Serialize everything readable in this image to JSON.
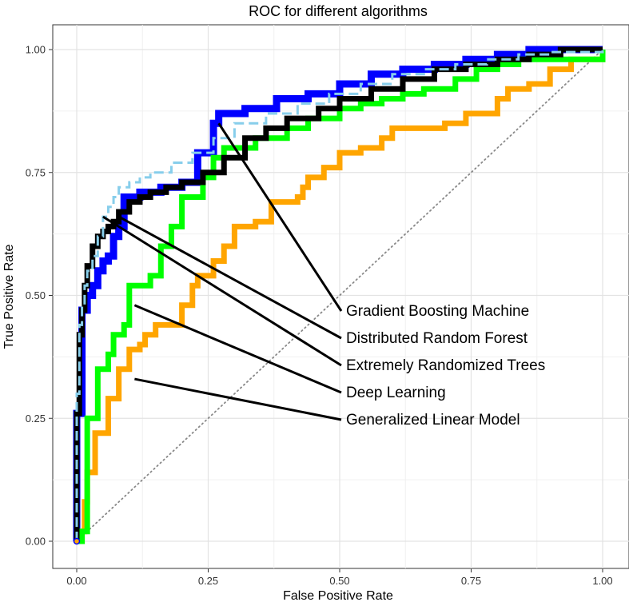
{
  "chart_data": {
    "type": "line",
    "title": "ROC for different algorithms",
    "xlabel": "False Positive Rate",
    "ylabel": "True Positive Rate",
    "xlim": [
      0,
      1
    ],
    "ylim": [
      0,
      1
    ],
    "xticks": [
      0,
      0.25,
      0.5,
      0.75,
      1
    ],
    "yticks": [
      0,
      0.25,
      0.5,
      0.75,
      1
    ],
    "xtick_labels": [
      "0.00",
      "0.25",
      "0.50",
      "0.75",
      "1.00"
    ],
    "ytick_labels": [
      "0.00",
      "0.25",
      "0.50",
      "0.75",
      "1.00"
    ],
    "grid": true,
    "legend": "annotations",
    "reference_line": {
      "x": [
        0,
        1
      ],
      "y": [
        0,
        1
      ],
      "style": "dotted",
      "color": "#888888"
    },
    "series": [
      {
        "name": "Generalized Linear Model",
        "color": "#FFA500",
        "annotation_point": [
          0.11,
          0.33
        ],
        "x": [
          0.0,
          0.01,
          0.015,
          0.02,
          0.02,
          0.035,
          0.035,
          0.06,
          0.06,
          0.08,
          0.08,
          0.1,
          0.1,
          0.12,
          0.13,
          0.15,
          0.15,
          0.2,
          0.2,
          0.22,
          0.23,
          0.26,
          0.28,
          0.3,
          0.3,
          0.34,
          0.37,
          0.37,
          0.42,
          0.43,
          0.44,
          0.47,
          0.5,
          0.5,
          0.54,
          0.58,
          0.6,
          0.64,
          0.7,
          0.74,
          0.8,
          0.82,
          0.86,
          0.9,
          0.94,
          1.0
        ],
        "y": [
          0.0,
          0.02,
          0.08,
          0.12,
          0.14,
          0.18,
          0.22,
          0.25,
          0.29,
          0.3,
          0.35,
          0.37,
          0.39,
          0.4,
          0.42,
          0.43,
          0.44,
          0.44,
          0.48,
          0.52,
          0.54,
          0.57,
          0.6,
          0.62,
          0.64,
          0.65,
          0.68,
          0.69,
          0.7,
          0.72,
          0.74,
          0.76,
          0.77,
          0.79,
          0.8,
          0.82,
          0.84,
          0.84,
          0.85,
          0.87,
          0.9,
          0.92,
          0.93,
          0.96,
          0.98,
          1.0
        ]
      },
      {
        "name": "Deep Learning",
        "color": "#00FF00",
        "annotation_point": [
          0.11,
          0.48
        ],
        "x": [
          0.0,
          0.01,
          0.02,
          0.02,
          0.04,
          0.04,
          0.06,
          0.07,
          0.09,
          0.1,
          0.1,
          0.14,
          0.16,
          0.16,
          0.18,
          0.2,
          0.2,
          0.24,
          0.26,
          0.28,
          0.34,
          0.4,
          0.44,
          0.5,
          0.54,
          0.58,
          0.62,
          0.66,
          0.72,
          0.76,
          0.8,
          0.84,
          1.0
        ],
        "y": [
          0.0,
          0.02,
          0.08,
          0.25,
          0.26,
          0.35,
          0.38,
          0.42,
          0.44,
          0.48,
          0.52,
          0.54,
          0.58,
          0.6,
          0.64,
          0.65,
          0.7,
          0.74,
          0.78,
          0.8,
          0.82,
          0.84,
          0.86,
          0.88,
          0.89,
          0.9,
          0.91,
          0.92,
          0.94,
          0.96,
          0.97,
          0.98,
          1.0
        ]
      },
      {
        "name": "Extremely Randomized Trees",
        "color": "#87CEEB",
        "annotation_point": [
          0.05,
          0.66
        ],
        "x": [
          0.0,
          0.0,
          0.005,
          0.01,
          0.015,
          0.02,
          0.03,
          0.04,
          0.05,
          0.06,
          0.07,
          0.08,
          0.1,
          0.12,
          0.14,
          0.18,
          0.22,
          0.26,
          0.3,
          0.36,
          0.42,
          0.48,
          0.54,
          0.6,
          0.66,
          0.72,
          0.78,
          0.84,
          0.9,
          1.0
        ],
        "y": [
          0.0,
          0.3,
          0.44,
          0.48,
          0.52,
          0.55,
          0.58,
          0.62,
          0.66,
          0.68,
          0.7,
          0.72,
          0.73,
          0.74,
          0.75,
          0.77,
          0.79,
          0.82,
          0.85,
          0.87,
          0.89,
          0.91,
          0.93,
          0.95,
          0.96,
          0.97,
          0.98,
          0.99,
          0.995,
          1.0
        ]
      },
      {
        "name": "Distributed Random Forest",
        "color": "#000000",
        "annotation_point": [
          0.08,
          0.66
        ],
        "x": [
          0.0,
          0.0,
          0.005,
          0.01,
          0.015,
          0.02,
          0.03,
          0.04,
          0.05,
          0.06,
          0.07,
          0.08,
          0.1,
          0.12,
          0.14,
          0.17,
          0.2,
          0.24,
          0.28,
          0.32,
          0.36,
          0.4,
          0.46,
          0.5,
          0.56,
          0.62,
          0.68,
          0.74,
          0.8,
          0.86,
          0.92,
          1.0
        ],
        "y": [
          0.0,
          0.26,
          0.42,
          0.47,
          0.52,
          0.56,
          0.6,
          0.62,
          0.63,
          0.64,
          0.65,
          0.67,
          0.69,
          0.7,
          0.71,
          0.72,
          0.73,
          0.75,
          0.78,
          0.82,
          0.84,
          0.86,
          0.88,
          0.9,
          0.92,
          0.94,
          0.96,
          0.97,
          0.98,
          0.99,
          1.0,
          1.0
        ]
      },
      {
        "name": "Gradient Boosting Machine",
        "color": "#0000FF",
        "annotation_point": [
          0.27,
          0.85
        ],
        "x": [
          0.0,
          0.0,
          0.01,
          0.01,
          0.02,
          0.03,
          0.04,
          0.05,
          0.06,
          0.07,
          0.08,
          0.09,
          0.09,
          0.12,
          0.16,
          0.2,
          0.23,
          0.23,
          0.26,
          0.27,
          0.32,
          0.38,
          0.44,
          0.5,
          0.56,
          0.62,
          0.68,
          0.74,
          0.8,
          0.86,
          0.92,
          1.0
        ],
        "y": [
          0.0,
          0.26,
          0.42,
          0.47,
          0.5,
          0.52,
          0.55,
          0.57,
          0.58,
          0.62,
          0.64,
          0.65,
          0.7,
          0.71,
          0.72,
          0.73,
          0.74,
          0.79,
          0.85,
          0.87,
          0.88,
          0.9,
          0.91,
          0.93,
          0.95,
          0.96,
          0.97,
          0.98,
          0.99,
          1.0,
          1.0,
          1.0
        ]
      }
    ],
    "annotations": [
      {
        "text": "Gradient Boosting Machine",
        "series": "Gradient Boosting Machine"
      },
      {
        "text": "Distributed Random Forest",
        "series": "Distributed Random Forest"
      },
      {
        "text": "Extremely Randomized Trees",
        "series": "Extremely Randomized Trees"
      },
      {
        "text": "Deep Learning",
        "series": "Deep Learning"
      },
      {
        "text": "Generalized Linear Model",
        "series": "Generalized Linear Model"
      }
    ]
  }
}
